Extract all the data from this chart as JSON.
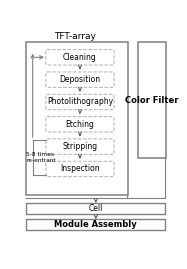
{
  "title": "TFT-array",
  "color_filter_label": "Color Filter",
  "process_steps": [
    "Cleaning",
    "Deposition",
    "Photolithography",
    "Etching",
    "Stripping",
    "Inspection"
  ],
  "bottom_steps": [
    "Cell",
    "Module Assembly"
  ],
  "loop_label": "5-8 times\nre-entrant",
  "bg_color": "#ffffff",
  "box_edge_color": "#b0b0b0",
  "outer_box_color": "#808080",
  "text_color": "#000000",
  "arrow_color": "#606060",
  "font_size": 5.5,
  "small_font_size": 4.2,
  "title_font_size": 6.5
}
